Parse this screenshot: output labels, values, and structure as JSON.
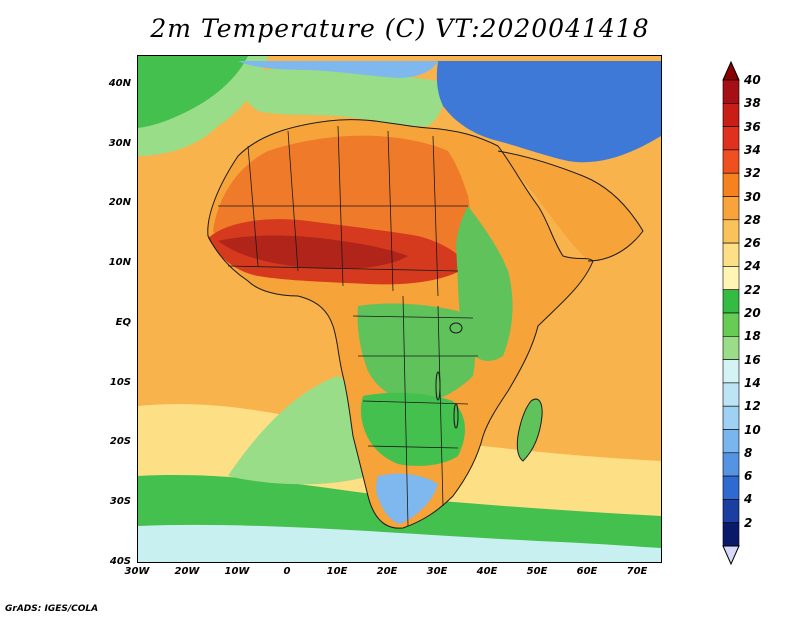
{
  "title": "2m Temperature (C) VT:2020041418",
  "footer": "GrADS: IGES/COLA",
  "map": {
    "lon_range": [
      -30,
      75
    ],
    "lat_range": [
      -40,
      45
    ],
    "lat_labels": [
      {
        "text": "40N",
        "lat": 40
      },
      {
        "text": "30N",
        "lat": 30
      },
      {
        "text": "20N",
        "lat": 20
      },
      {
        "text": "10N",
        "lat": 10
      },
      {
        "text": "EQ",
        "lat": 0
      },
      {
        "text": "10S",
        "lat": -10
      },
      {
        "text": "20S",
        "lat": -20
      },
      {
        "text": "30S",
        "lat": -30
      },
      {
        "text": "40S",
        "lat": -40
      }
    ],
    "lon_labels": [
      {
        "text": "30W",
        "lon": -30
      },
      {
        "text": "20W",
        "lon": -20
      },
      {
        "text": "10W",
        "lon": -10
      },
      {
        "text": "0",
        "lon": 0
      },
      {
        "text": "10E",
        "lon": 10
      },
      {
        "text": "20E",
        "lon": 20
      },
      {
        "text": "30E",
        "lon": 30
      },
      {
        "text": "40E",
        "lon": 40
      },
      {
        "text": "50E",
        "lon": 50
      },
      {
        "text": "60E",
        "lon": 60
      },
      {
        "text": "70E",
        "lon": 70
      }
    ]
  },
  "colorbar": {
    "labels": [
      "40",
      "38",
      "36",
      "34",
      "32",
      "30",
      "28",
      "26",
      "24",
      "22",
      "20",
      "18",
      "16",
      "14",
      "12",
      "10",
      "8",
      "6",
      "4",
      "2"
    ],
    "colors": [
      "#a50f15",
      "#c81e16",
      "#e0301e",
      "#f0501f",
      "#f6821f",
      "#f8a43a",
      "#fac25a",
      "#fddf86",
      "#fff5b4",
      "#33bb44",
      "#66cc55",
      "#99dd88",
      "#d4f3f5",
      "#bde4f5",
      "#9fd1f5",
      "#79b5ef",
      "#5593e3",
      "#2f6ad3",
      "#1a3fa0",
      "#0a1a6b"
    ],
    "top_arrow_color": "#8b0000",
    "bottom_arrow_color": "#d8d8f8"
  },
  "palette": {
    "ocean_warm": "#f8b34c",
    "ocean_hot": "#f6a33a",
    "ocean_mild": "#fddf86",
    "sahara": "#ef7a2a",
    "sahel_hot": "#d63a1e",
    "sahel_core": "#b0241a",
    "forest": "#5fc25a",
    "highland": "#99dd88",
    "cool_blue": "#7fb8ee",
    "cold_blue": "#3f79d8",
    "south_green": "#44c04e",
    "south_cool": "#c9f0f0",
    "coast": "#1a1a1a"
  }
}
